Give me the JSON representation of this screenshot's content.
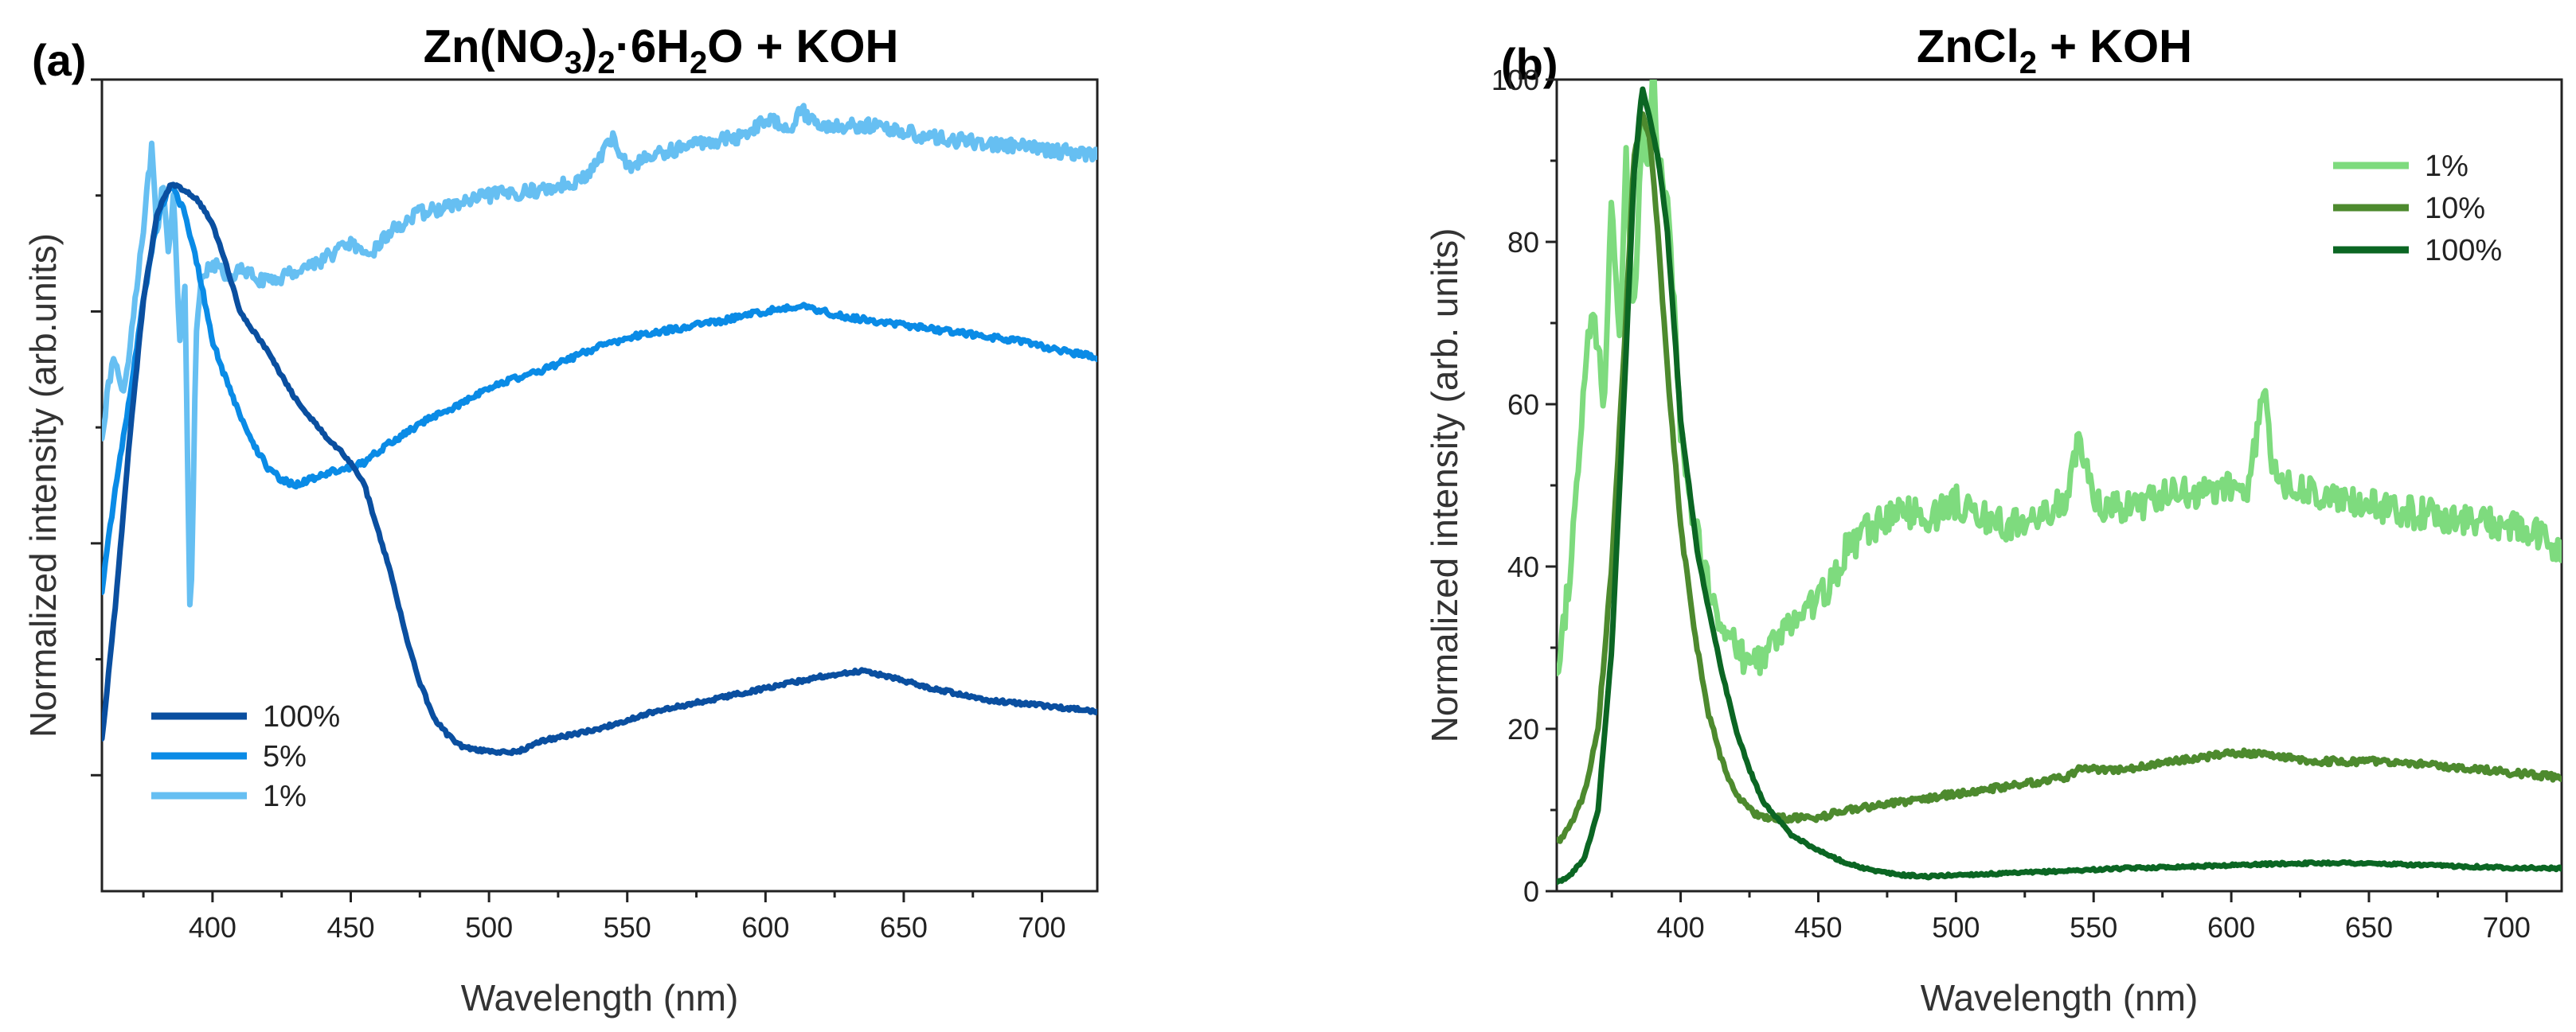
{
  "chart_data": [
    {
      "panel": "(a)",
      "type": "line",
      "title_parts": [
        "Zn(NO",
        "3",
        ")",
        "2",
        "·6H",
        "2",
        "O + KOH"
      ],
      "xlabel": "Wavelength (nm)",
      "ylabel": "Normalized intensity (arb.units)",
      "xlim": [
        360,
        720
      ],
      "ylim": [
        0,
        1.4
      ],
      "xticks": [
        400,
        450,
        500,
        550,
        600,
        650,
        700
      ],
      "yticks_major": [
        0.2,
        0.6,
        1.0,
        1.4
      ],
      "yticks_minor": [
        0.4,
        0.8,
        1.2
      ],
      "y_tick_labels_shown": false,
      "legend": [
        {
          "name": "100%",
          "color": "#0A4FA0"
        },
        {
          "name": "5%",
          "color": "#0A8BE6"
        },
        {
          "name": "1%",
          "color": "#66BFF2"
        }
      ],
      "series": [
        {
          "name": "1%",
          "color": "#66BFF2",
          "noise": 0.012,
          "points": [
            [
              360,
              0.79
            ],
            [
              364,
              0.92
            ],
            [
              368,
              0.86
            ],
            [
              372,
              1.02
            ],
            [
              376,
              1.19
            ],
            [
              378,
              1.28
            ],
            [
              380,
              1.12
            ],
            [
              382,
              1.22
            ],
            [
              384,
              1.1
            ],
            [
              386,
              1.21
            ],
            [
              388,
              0.95
            ],
            [
              390,
              1.05
            ],
            [
              392,
              0.42
            ],
            [
              394,
              0.95
            ],
            [
              396,
              1.05
            ],
            [
              398,
              1.07
            ],
            [
              402,
              1.08
            ],
            [
              405,
              1.06
            ],
            [
              410,
              1.07
            ],
            [
              420,
              1.05
            ],
            [
              425,
              1.06
            ],
            [
              430,
              1.07
            ],
            [
              440,
              1.09
            ],
            [
              450,
              1.12
            ],
            [
              455,
              1.09
            ],
            [
              465,
              1.14
            ],
            [
              475,
              1.17
            ],
            [
              485,
              1.18
            ],
            [
              500,
              1.2
            ],
            [
              520,
              1.21
            ],
            [
              535,
              1.23
            ],
            [
              545,
              1.3
            ],
            [
              550,
              1.25
            ],
            [
              560,
              1.27
            ],
            [
              575,
              1.29
            ],
            [
              590,
              1.3
            ],
            [
              600,
              1.33
            ],
            [
              610,
              1.32
            ],
            [
              612,
              1.35
            ],
            [
              620,
              1.32
            ],
            [
              640,
              1.32
            ],
            [
              660,
              1.3
            ],
            [
              680,
              1.29
            ],
            [
              700,
              1.28
            ],
            [
              720,
              1.27
            ]
          ]
        },
        {
          "name": "5%",
          "color": "#0A8BE6",
          "noise": 0.005,
          "points": [
            [
              360,
              0.52
            ],
            [
              365,
              0.7
            ],
            [
              370,
              0.85
            ],
            [
              375,
              1.02
            ],
            [
              380,
              1.16
            ],
            [
              385,
              1.22
            ],
            [
              390,
              1.17
            ],
            [
              395,
              1.07
            ],
            [
              400,
              0.95
            ],
            [
              405,
              0.88
            ],
            [
              410,
              0.82
            ],
            [
              415,
              0.77
            ],
            [
              420,
              0.73
            ],
            [
              425,
              0.71
            ],
            [
              430,
              0.7
            ],
            [
              440,
              0.72
            ],
            [
              450,
              0.73
            ],
            [
              455,
              0.74
            ],
            [
              460,
              0.76
            ],
            [
              470,
              0.79
            ],
            [
              480,
              0.82
            ],
            [
              490,
              0.84
            ],
            [
              500,
              0.87
            ],
            [
              520,
              0.9
            ],
            [
              540,
              0.94
            ],
            [
              555,
              0.96
            ],
            [
              580,
              0.98
            ],
            [
              600,
              1.0
            ],
            [
              612,
              1.01
            ],
            [
              630,
              0.99
            ],
            [
              660,
              0.97
            ],
            [
              690,
              0.95
            ],
            [
              720,
              0.92
            ]
          ]
        },
        {
          "name": "100%",
          "color": "#0A4FA0",
          "noise": 0.003,
          "points": [
            [
              360,
              0.26
            ],
            [
              365,
              0.5
            ],
            [
              370,
              0.78
            ],
            [
              375,
              1.02
            ],
            [
              380,
              1.17
            ],
            [
              385,
              1.22
            ],
            [
              390,
              1.21
            ],
            [
              395,
              1.19
            ],
            [
              400,
              1.15
            ],
            [
              405,
              1.08
            ],
            [
              410,
              1.0
            ],
            [
              420,
              0.93
            ],
            [
              430,
              0.85
            ],
            [
              440,
              0.79
            ],
            [
              450,
              0.74
            ],
            [
              455,
              0.7
            ],
            [
              460,
              0.62
            ],
            [
              465,
              0.54
            ],
            [
              470,
              0.44
            ],
            [
              475,
              0.36
            ],
            [
              480,
              0.3
            ],
            [
              485,
              0.27
            ],
            [
              490,
              0.25
            ],
            [
              500,
              0.24
            ],
            [
              510,
              0.24
            ],
            [
              520,
              0.26
            ],
            [
              540,
              0.28
            ],
            [
              560,
              0.31
            ],
            [
              580,
              0.33
            ],
            [
              600,
              0.35
            ],
            [
              620,
              0.37
            ],
            [
              635,
              0.38
            ],
            [
              645,
              0.37
            ],
            [
              660,
              0.35
            ],
            [
              680,
              0.33
            ],
            [
              700,
              0.32
            ],
            [
              720,
              0.31
            ]
          ]
        }
      ]
    },
    {
      "panel": "(b)",
      "type": "line",
      "title_parts": [
        "ZnCl",
        "2",
        " + KOH"
      ],
      "xlabel": "Wavelength (nm)",
      "ylabel": "Normalized intensity (arb. units)",
      "xlim": [
        355,
        720
      ],
      "ylim": [
        0,
        100
      ],
      "xticks": [
        400,
        450,
        500,
        550,
        600,
        650,
        700
      ],
      "yticks": [
        0,
        20,
        40,
        60,
        80,
        100
      ],
      "legend": [
        {
          "name": "1%",
          "color": "#7EDB7E"
        },
        {
          "name": "10%",
          "color": "#4D8A2E"
        },
        {
          "name": "100%",
          "color": "#0B6623"
        }
      ],
      "series": [
        {
          "name": "1%",
          "color": "#7EDB7E",
          "noise": 2.0,
          "points": [
            [
              355,
              25
            ],
            [
              360,
              40
            ],
            [
              364,
              58
            ],
            [
              368,
              73
            ],
            [
              372,
              60
            ],
            [
              375,
              85
            ],
            [
              378,
              68
            ],
            [
              380,
              92
            ],
            [
              383,
              70
            ],
            [
              386,
              95
            ],
            [
              388,
              88
            ],
            [
              390,
              100
            ],
            [
              392,
              90
            ],
            [
              395,
              85
            ],
            [
              398,
              70
            ],
            [
              400,
              56
            ],
            [
              405,
              45
            ],
            [
              410,
              38
            ],
            [
              415,
              33
            ],
            [
              420,
              30
            ],
            [
              425,
              28
            ],
            [
              430,
              29
            ],
            [
              440,
              33
            ],
            [
              450,
              36
            ],
            [
              455,
              38
            ],
            [
              460,
              42
            ],
            [
              470,
              45
            ],
            [
              480,
              47
            ],
            [
              490,
              46
            ],
            [
              500,
              48
            ],
            [
              510,
              46
            ],
            [
              520,
              45
            ],
            [
              530,
              46
            ],
            [
              540,
              48
            ],
            [
              545,
              56
            ],
            [
              550,
              48
            ],
            [
              560,
              47
            ],
            [
              570,
              48
            ],
            [
              580,
              49
            ],
            [
              590,
              49
            ],
            [
              600,
              50
            ],
            [
              605,
              48
            ],
            [
              612,
              62
            ],
            [
              615,
              52
            ],
            [
              620,
              50
            ],
            [
              640,
              48
            ],
            [
              660,
              47
            ],
            [
              680,
              46
            ],
            [
              700,
              45
            ],
            [
              710,
              44
            ],
            [
              720,
              42
            ]
          ]
        },
        {
          "name": "10%",
          "color": "#4D8A2E",
          "noise": 0.4,
          "points": [
            [
              355,
              6
            ],
            [
              360,
              8
            ],
            [
              365,
              12
            ],
            [
              370,
              20
            ],
            [
              375,
              40
            ],
            [
              380,
              70
            ],
            [
              383,
              90
            ],
            [
              386,
              96
            ],
            [
              389,
              92
            ],
            [
              392,
              80
            ],
            [
              395,
              65
            ],
            [
              400,
              45
            ],
            [
              405,
              32
            ],
            [
              410,
              22
            ],
            [
              415,
              16
            ],
            [
              420,
              12
            ],
            [
              425,
              10
            ],
            [
              430,
              9
            ],
            [
              440,
              9
            ],
            [
              450,
              9
            ],
            [
              460,
              10
            ],
            [
              480,
              11
            ],
            [
              500,
              12
            ],
            [
              520,
              13
            ],
            [
              540,
              14
            ],
            [
              545,
              15
            ],
            [
              560,
              15
            ],
            [
              580,
              16
            ],
            [
              600,
              17
            ],
            [
              612,
              17
            ],
            [
              630,
              16
            ],
            [
              660,
              16
            ],
            [
              690,
              15
            ],
            [
              720,
              14
            ]
          ]
        },
        {
          "name": "100%",
          "color": "#0B6623",
          "noise": 0.15,
          "points": [
            [
              355,
              1
            ],
            [
              360,
              2
            ],
            [
              365,
              4
            ],
            [
              370,
              10
            ],
            [
              375,
              30
            ],
            [
              380,
              65
            ],
            [
              383,
              88
            ],
            [
              386,
              99
            ],
            [
              389,
              95
            ],
            [
              392,
              90
            ],
            [
              395,
              82
            ],
            [
              398,
              68
            ],
            [
              400,
              58
            ],
            [
              403,
              50
            ],
            [
              406,
              42
            ],
            [
              410,
              35
            ],
            [
              415,
              27
            ],
            [
              420,
              20
            ],
            [
              425,
              15
            ],
            [
              430,
              11
            ],
            [
              440,
              7
            ],
            [
              450,
              5
            ],
            [
              460,
              3.5
            ],
            [
              470,
              2.5
            ],
            [
              480,
              2
            ],
            [
              490,
              1.8
            ],
            [
              500,
              2
            ],
            [
              520,
              2.2
            ],
            [
              540,
              2.5
            ],
            [
              560,
              2.8
            ],
            [
              580,
              3
            ],
            [
              600,
              3.2
            ],
            [
              620,
              3.4
            ],
            [
              640,
              3.5
            ],
            [
              660,
              3.3
            ],
            [
              680,
              3.1
            ],
            [
              700,
              2.9
            ],
            [
              720,
              2.8
            ]
          ]
        }
      ]
    }
  ]
}
